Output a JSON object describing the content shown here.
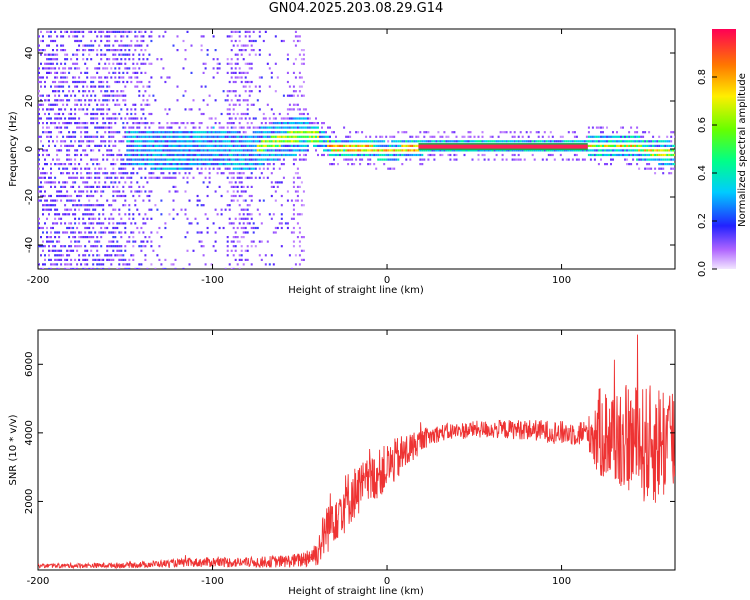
{
  "title": "GN04.2025.203.08.29.G14",
  "chart_data": [
    {
      "type": "heatmap",
      "xlabel": "Height of straight line (km)",
      "ylabel": "Frequency (Hz)",
      "xlim": [
        -200,
        165
      ],
      "ylim": [
        -50,
        50
      ],
      "xticks": [
        -200,
        -100,
        0,
        100
      ],
      "yticks": [
        -40,
        -20,
        0,
        20,
        40
      ],
      "grid": false,
      "colorbar": {
        "label": "Normalized spectral amplitude",
        "ticks": [
          0.0,
          0.2,
          0.4,
          0.6,
          0.8
        ],
        "range": [
          0,
          1
        ]
      },
      "ridge": {
        "x": [
          -140,
          -120,
          -100,
          -90,
          -80,
          -70,
          -60,
          -50,
          -40,
          -35,
          -30,
          -25,
          -20,
          -10,
          0,
          10,
          20,
          60,
          100,
          120,
          140,
          150,
          165
        ],
        "y": [
          0,
          -1,
          1,
          0,
          -2,
          2,
          4,
          6,
          5,
          2,
          0,
          1,
          0,
          0,
          -1,
          0,
          1,
          1,
          1,
          1,
          1,
          -1,
          -2
        ]
      },
      "strong_line": {
        "x": [
          18,
          115
        ],
        "y": 1
      }
    },
    {
      "type": "line",
      "xlabel": "Height of straight line (km)",
      "ylabel": "SNR (10 * v/v)",
      "xlim": [
        -200,
        165
      ],
      "ylim": [
        0,
        7000
      ],
      "xticks": [
        -200,
        -100,
        0,
        100
      ],
      "yticks": [
        2000,
        4000,
        6000
      ],
      "grid": false,
      "series": [
        {
          "color": "#ee3333",
          "envelope": {
            "x": [
              -200,
              -150,
              -120,
              -100,
              -80,
              -60,
              -50,
              -40,
              -35,
              -30,
              -25,
              -20,
              -10,
              0,
              10,
              20,
              30,
              50,
              80,
              100,
              115,
              120,
              130,
              140,
              150,
              160,
              165
            ],
            "mean": [
              120,
              140,
              200,
              230,
              220,
              250,
              280,
              500,
              1200,
              1700,
              1900,
              2200,
              2600,
              3000,
              3400,
              3800,
              4000,
              4100,
              4100,
              4000,
              4000,
              4000,
              3900,
              3800,
              3600,
              3800,
              3800
            ],
            "spread": [
              60,
              80,
              120,
              150,
              150,
              180,
              220,
              400,
              800,
              900,
              900,
              800,
              700,
              700,
              600,
              300,
              250,
              250,
              300,
              350,
              400,
              1300,
              1500,
              1600,
              1800,
              1800,
              1800
            ]
          }
        }
      ]
    }
  ]
}
